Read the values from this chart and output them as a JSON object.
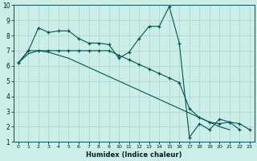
{
  "xlabel": "Humidex (Indice chaleur)",
  "background_color": "#cceee8",
  "grid_color": "#aad4cc",
  "line_color": "#005555",
  "x_all": [
    0,
    1,
    2,
    3,
    4,
    5,
    6,
    7,
    8,
    9,
    10,
    11,
    12,
    13,
    14,
    15,
    16,
    17,
    18,
    19,
    20,
    21,
    22,
    23
  ],
  "series_jagged": [
    6.2,
    7.0,
    8.5,
    8.2,
    8.3,
    8.3,
    7.8,
    7.5,
    7.5,
    7.4,
    6.5,
    6.9,
    7.8,
    8.6,
    8.6,
    9.9,
    7.5,
    1.3,
    2.2,
    1.8,
    2.5,
    2.3,
    1.8,
    null
  ],
  "series_flat_diag": [
    6.2,
    7.0,
    7.0,
    7.0,
    7.0,
    7.0,
    7.0,
    7.0,
    7.0,
    7.0,
    6.7,
    6.4,
    6.1,
    5.8,
    5.5,
    5.2,
    4.9,
    3.2,
    2.6,
    2.3,
    2.2,
    2.3,
    2.2,
    1.8
  ],
  "series_straight": [
    6.2,
    6.8,
    7.0,
    6.9,
    6.7,
    6.5,
    6.2,
    5.9,
    5.6,
    5.3,
    5.0,
    4.7,
    4.4,
    4.1,
    3.8,
    3.5,
    3.2,
    2.9,
    2.6,
    2.3,
    2.0,
    1.8,
    null,
    null
  ],
  "ylim": [
    1,
    10
  ],
  "xlim": [
    -0.5,
    23.5
  ],
  "yticks": [
    1,
    2,
    3,
    4,
    5,
    6,
    7,
    8,
    9,
    10
  ],
  "xticks": [
    0,
    1,
    2,
    3,
    4,
    5,
    6,
    7,
    8,
    9,
    10,
    11,
    12,
    13,
    14,
    15,
    16,
    17,
    18,
    19,
    20,
    21,
    22,
    23
  ]
}
